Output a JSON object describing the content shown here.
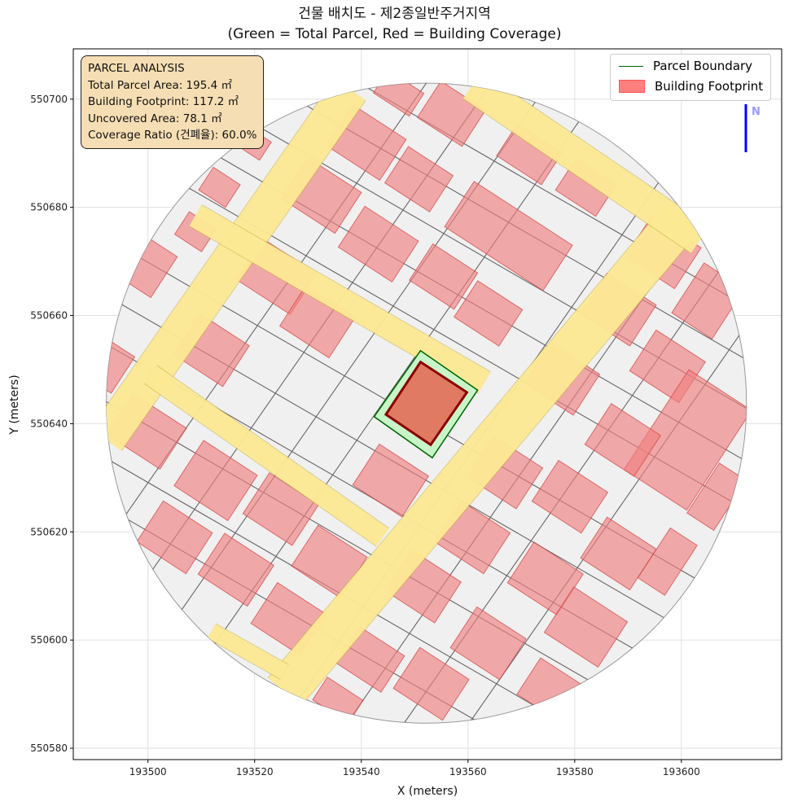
{
  "title": {
    "line1": "건물 배치도 - 제2종일반주거지역",
    "line2": "(Green = Total Parcel, Red = Building Coverage)"
  },
  "info_box": {
    "heading": "PARCEL ANALYSIS",
    "total_parcel_area": "Total Parcel Area: 195.4 ㎡",
    "building_footprint": "Building Footprint: 117.2 ㎡",
    "uncovered_area": "Uncovered Area: 78.1 ㎡",
    "coverage_ratio": "Coverage Ratio (건폐율): 60.0%"
  },
  "legend": {
    "parcel_boundary": "Parcel Boundary",
    "building_footprint": "Building Footprint"
  },
  "north_arrow": {
    "label": "N"
  },
  "chart_data": {
    "type": "map",
    "xlabel": "X (meters)",
    "ylabel": "Y (meters)",
    "xlim": [
      193486.0,
      193618.8
    ],
    "ylim": [
      550577.9,
      550709.3
    ],
    "xticks": [
      193500,
      193520,
      193540,
      193560,
      193580,
      193600
    ],
    "yticks": [
      550580,
      550600,
      550620,
      550640,
      550660,
      550680,
      550700
    ],
    "grid": true,
    "legend_position": "top-right",
    "colors": {
      "parcel_fill": "#c8f5c8",
      "parcel_edge": "#006400",
      "building_fill": "#e07a62",
      "building_edge": "#8b0000",
      "context_building": "#f08080",
      "road": "#ffe680",
      "lot_line": "#666666",
      "area_bg": "#f0f0f0",
      "north": "#0000ff"
    },
    "study_area": {
      "center": [
        193552.2,
        550643.8
      ],
      "radius": 60
    },
    "parcel": [
      [
        193551.1,
        550653.5
      ],
      [
        193561.8,
        550646.2
      ],
      [
        193553.3,
        550633.7
      ],
      [
        193542.4,
        550641.3
      ]
    ],
    "building": [
      [
        193551.1,
        550651.4
      ],
      [
        193559.8,
        550645.8
      ],
      [
        193553.0,
        550636.1
      ],
      [
        193544.6,
        550641.7
      ]
    ],
    "roads": [
      {
        "from": [
          193492.1,
          550637.0
        ],
        "to": [
          193537.9,
          550701.8
        ],
        "width": 7
      },
      {
        "from": [
          193525.6,
          550590.4
        ],
        "to": [
          193600.5,
          550678.5
        ],
        "width": 8
      },
      {
        "from": [
          193508.9,
          550678.5
        ],
        "to": [
          193563.1,
          550647.6
        ],
        "width": 4.5
      },
      {
        "from": [
          193500.5,
          550649.1
        ],
        "to": [
          193544.0,
          550619.0
        ],
        "width": 4
      },
      {
        "from": [
          193511.9,
          550601.7
        ],
        "to": [
          193525.6,
          550594.1
        ],
        "width": 3
      },
      {
        "from": [
          193560.8,
          550702.6
        ],
        "to": [
          193603.5,
          550674.0
        ],
        "width": 6
      }
    ],
    "lot_lines_nwse_y_at_center": [
      550695.8,
      550686.0,
      550677.0,
      550667.2,
      550658.2,
      550640.1,
      550629.5,
      550620.5,
      550609.9,
      550599.4,
      550590.4
    ],
    "lot_lines_swne_x_at_center": [
      193510.4,
      193522.6,
      193533.3,
      193544.0,
      193566.9,
      193579.1,
      193589.8,
      193602.0
    ],
    "context_buildings": [
      [
        193540.9,
        550692.0,
        12,
        9
      ],
      [
        193532.5,
        550682.2,
        12,
        9
      ],
      [
        193550.8,
        550685.2,
        10,
        8
      ],
      [
        193543.2,
        550673.2,
        12,
        9
      ],
      [
        193567.6,
        550674.7,
        22,
        10
      ],
      [
        193555.4,
        550667.2,
        10,
        8
      ],
      [
        193563.8,
        550660.4,
        10,
        8
      ],
      [
        193571.5,
        550689.8,
        10,
        7
      ],
      [
        193582.1,
        550683.7,
        9,
        7
      ],
      [
        193556.9,
        550697.3,
        10,
        8
      ],
      [
        193547.0,
        550701.1,
        8,
        5
      ],
      [
        193524.1,
        550667.2,
        12,
        9
      ],
      [
        193531.8,
        550658.9,
        11,
        9
      ],
      [
        193511.9,
        550653.6,
        11,
        9
      ],
      [
        193500.5,
        550668.7,
        6,
        9
      ],
      [
        193508.9,
        550675.5,
        6,
        5
      ],
      [
        193513.4,
        550683.7,
        6,
        5
      ],
      [
        193519.5,
        550692.0,
        6,
        4
      ],
      [
        193596.6,
        550671.7,
        11,
        9
      ],
      [
        193605.0,
        550662.7,
        9,
        11
      ],
      [
        193588.2,
        550661.1,
        11,
        9
      ],
      [
        193597.4,
        550650.6,
        11,
        9
      ],
      [
        193601.2,
        550637.0,
        14,
        22
      ],
      [
        193577.6,
        550648.3,
        11,
        9
      ],
      [
        193589.0,
        550637.0,
        11,
        9
      ],
      [
        193566.9,
        550631.0,
        11,
        9
      ],
      [
        193579.1,
        550626.5,
        11,
        9
      ],
      [
        193606.6,
        550626.5,
        6,
        11
      ],
      [
        193597.4,
        550614.5,
        6,
        11
      ],
      [
        193588.2,
        550616.0,
        11,
        9
      ],
      [
        193574.5,
        550611.4,
        11,
        9
      ],
      [
        193560.8,
        550619.0,
        11,
        9
      ],
      [
        193551.6,
        550609.9,
        11,
        9
      ],
      [
        193563.8,
        550599.4,
        11,
        9
      ],
      [
        193582.1,
        550602.4,
        12,
        10
      ],
      [
        193576.0,
        550590.4,
        11,
        8
      ],
      [
        193553.1,
        550591.9,
        11,
        9
      ],
      [
        193541.7,
        550596.4,
        10,
        8
      ],
      [
        193534.0,
        550614.5,
        11,
        9
      ],
      [
        193545.5,
        550629.5,
        11,
        9
      ],
      [
        193524.9,
        550624.2,
        11,
        9
      ],
      [
        193512.7,
        550629.5,
        12,
        10
      ],
      [
        193499.7,
        550638.6,
        12,
        9
      ],
      [
        193505.0,
        550619.0,
        11,
        9
      ],
      [
        193516.5,
        550613.0,
        11,
        9
      ],
      [
        193526.4,
        550603.9,
        11,
        9
      ],
      [
        193535.6,
        550588.9,
        8,
        5
      ],
      [
        193492.8,
        550650.6,
        6,
        8
      ]
    ],
    "building_angle_deg": -33
  }
}
